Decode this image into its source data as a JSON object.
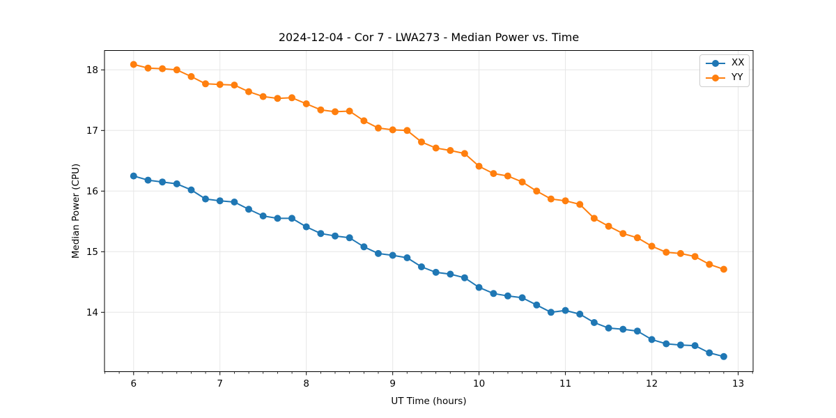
{
  "figure": {
    "title": "2024-12-04 - Cor 7 - LWA273 - Median Power vs. Time"
  },
  "colors": {
    "background": "#ffffff",
    "grid": "#e6e6e6",
    "spine": "#000000",
    "tick": "#000000",
    "text": "#000000",
    "series_xx": "#1f77b4",
    "series_yy": "#ff7f0e",
    "legend_border": "#cccccc"
  },
  "legend": {
    "items": [
      {
        "label": "XX",
        "color": "#1f77b4"
      },
      {
        "label": "YY",
        "color": "#ff7f0e"
      }
    ]
  },
  "chart_data": {
    "type": "line",
    "title": "2024-12-04 - Cor 7 - LWA273 - Median Power vs. Time",
    "xlabel": "UT Time (hours)",
    "ylabel": "Median Power (CPU)",
    "xlim": [
      5.663,
      13.173
    ],
    "ylim": [
      13.02,
      18.32
    ],
    "x_major_ticks": [
      6,
      7,
      8,
      9,
      10,
      11,
      12,
      13
    ],
    "x_minor_tick_step": 0.1666667,
    "y_major_ticks": [
      14,
      15,
      16,
      17,
      18
    ],
    "grid": true,
    "legend_position": "upper right",
    "marker": "circle",
    "x": [
      6.0,
      6.167,
      6.333,
      6.5,
      6.667,
      6.833,
      7.0,
      7.167,
      7.333,
      7.5,
      7.667,
      7.833,
      8.0,
      8.167,
      8.333,
      8.5,
      8.667,
      8.833,
      9.0,
      9.167,
      9.333,
      9.5,
      9.667,
      9.833,
      10.0,
      10.167,
      10.333,
      10.5,
      10.667,
      10.833,
      11.0,
      11.167,
      11.333,
      11.5,
      11.667,
      11.833,
      12.0,
      12.167,
      12.333,
      12.5,
      12.667,
      12.833
    ],
    "series": [
      {
        "name": "XX",
        "color": "#1f77b4",
        "values": [
          16.25,
          16.18,
          16.15,
          16.12,
          16.02,
          15.87,
          15.84,
          15.82,
          15.7,
          15.59,
          15.55,
          15.55,
          15.41,
          15.3,
          15.26,
          15.23,
          15.08,
          14.97,
          14.94,
          14.9,
          14.75,
          14.66,
          14.63,
          14.57,
          14.41,
          14.31,
          14.27,
          14.24,
          14.12,
          14.0,
          14.03,
          13.97,
          13.83,
          13.74,
          13.72,
          13.69,
          13.55,
          13.48,
          13.46,
          13.45,
          13.33,
          13.27
        ]
      },
      {
        "name": "YY",
        "color": "#ff7f0e",
        "values": [
          18.09,
          18.03,
          18.02,
          18.0,
          17.89,
          17.77,
          17.76,
          17.75,
          17.64,
          17.56,
          17.53,
          17.54,
          17.44,
          17.34,
          17.31,
          17.32,
          17.16,
          17.04,
          17.01,
          17.0,
          16.81,
          16.71,
          16.67,
          16.62,
          16.41,
          16.29,
          16.25,
          16.15,
          16.0,
          15.87,
          15.84,
          15.78,
          15.55,
          15.42,
          15.3,
          15.23,
          15.09,
          14.99,
          14.97,
          14.92,
          14.79,
          14.71
        ]
      }
    ]
  }
}
